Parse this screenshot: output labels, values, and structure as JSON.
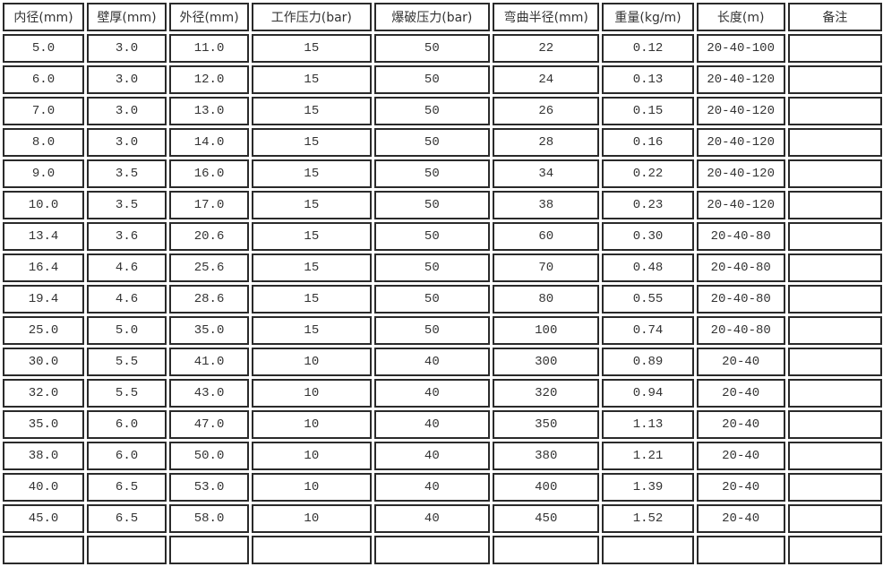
{
  "table": {
    "headers": [
      "内径(mm)",
      "壁厚(mm)",
      "外径(mm)",
      "工作压力(bar)",
      "爆破压力(bar)",
      "弯曲半径(mm)",
      "重量(kg/m)",
      "长度(m)",
      "备注"
    ],
    "rows": [
      [
        "5.0",
        "3.0",
        "11.0",
        "15",
        "50",
        "22",
        "0.12",
        "20-40-100",
        ""
      ],
      [
        "6.0",
        "3.0",
        "12.0",
        "15",
        "50",
        "24",
        "0.13",
        "20-40-120",
        ""
      ],
      [
        "7.0",
        "3.0",
        "13.0",
        "15",
        "50",
        "26",
        "0.15",
        "20-40-120",
        ""
      ],
      [
        "8.0",
        "3.0",
        "14.0",
        "15",
        "50",
        "28",
        "0.16",
        "20-40-120",
        ""
      ],
      [
        "9.0",
        "3.5",
        "16.0",
        "15",
        "50",
        "34",
        "0.22",
        "20-40-120",
        ""
      ],
      [
        "10.0",
        "3.5",
        "17.0",
        "15",
        "50",
        "38",
        "0.23",
        "20-40-120",
        ""
      ],
      [
        "13.4",
        "3.6",
        "20.6",
        "15",
        "50",
        "60",
        "0.30",
        "20-40-80",
        ""
      ],
      [
        "16.4",
        "4.6",
        "25.6",
        "15",
        "50",
        "70",
        "0.48",
        "20-40-80",
        ""
      ],
      [
        "19.4",
        "4.6",
        "28.6",
        "15",
        "50",
        "80",
        "0.55",
        "20-40-80",
        ""
      ],
      [
        "25.0",
        "5.0",
        "35.0",
        "15",
        "50",
        "100",
        "0.74",
        "20-40-80",
        ""
      ],
      [
        "30.0",
        "5.5",
        "41.0",
        "10",
        "40",
        "300",
        "0.89",
        "20-40",
        ""
      ],
      [
        "32.0",
        "5.5",
        "43.0",
        "10",
        "40",
        "320",
        "0.94",
        "20-40",
        ""
      ],
      [
        "35.0",
        "6.0",
        "47.0",
        "10",
        "40",
        "350",
        "1.13",
        "20-40",
        ""
      ],
      [
        "38.0",
        "6.0",
        "50.0",
        "10",
        "40",
        "380",
        "1.21",
        "20-40",
        ""
      ],
      [
        "40.0",
        "6.5",
        "53.0",
        "10",
        "40",
        "400",
        "1.39",
        "20-40",
        ""
      ],
      [
        "45.0",
        "6.5",
        "58.0",
        "10",
        "40",
        "450",
        "1.52",
        "20-40",
        ""
      ]
    ]
  }
}
